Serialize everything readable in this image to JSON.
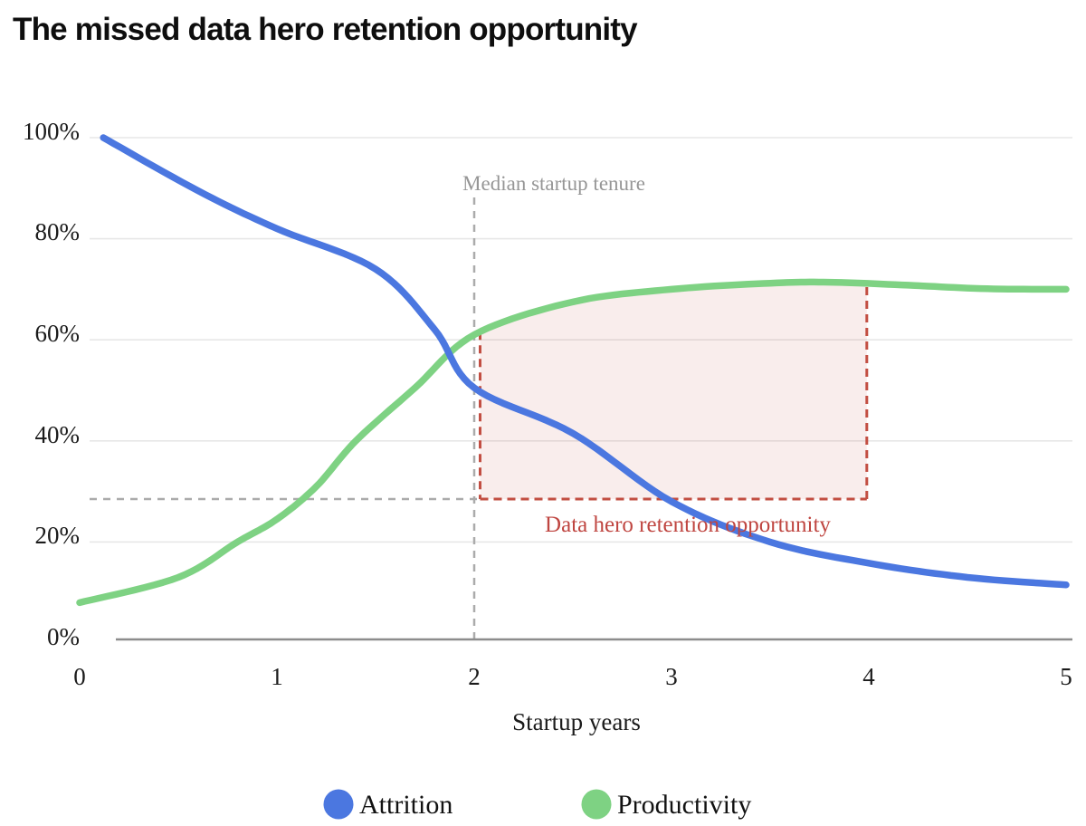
{
  "title": "The missed data hero retention opportunity",
  "chart_data": {
    "type": "line",
    "title": "The missed data hero retention opportunity",
    "xlabel": "Startup years",
    "ylabel": "",
    "xlim": [
      0,
      5
    ],
    "ylim": [
      0,
      100
    ],
    "x_ticks": [
      "0",
      "1",
      "2",
      "3",
      "4",
      "5"
    ],
    "y_ticks": [
      "100%",
      "80%",
      "60%",
      "40%",
      "20%",
      "0%"
    ],
    "y_tick_values": [
      100,
      80,
      60,
      40,
      20,
      0
    ],
    "grid": "horizontal-only",
    "legend_position": "bottom-center",
    "series": [
      {
        "name": "Attrition",
        "color": "#4b77e0",
        "points": [
          [
            0.12,
            100
          ],
          [
            0.6,
            89.5
          ],
          [
            1,
            82
          ],
          [
            1.5,
            74
          ],
          [
            1.8,
            62
          ],
          [
            2,
            50.5
          ],
          [
            2.5,
            41.5
          ],
          [
            3,
            28
          ],
          [
            3.5,
            20
          ],
          [
            4,
            15.8
          ],
          [
            4.5,
            13
          ],
          [
            5,
            11.5
          ]
        ]
      },
      {
        "name": "Productivity",
        "color": "#7ed283",
        "points": [
          [
            0,
            8
          ],
          [
            0.5,
            13
          ],
          [
            0.8,
            20
          ],
          [
            1,
            24.5
          ],
          [
            1.2,
            31
          ],
          [
            1.4,
            40
          ],
          [
            1.7,
            50.5
          ],
          [
            2,
            61
          ],
          [
            2.5,
            67.5
          ],
          [
            3,
            70
          ],
          [
            3.5,
            71.2
          ],
          [
            3.8,
            71.4
          ],
          [
            4.2,
            70.8
          ],
          [
            4.6,
            70.1
          ],
          [
            5,
            70
          ]
        ]
      }
    ],
    "annotations": {
      "median_tenure": {
        "label": "Median startup tenure",
        "x": 2,
        "line_color": "#ababab",
        "label_color": "#969696"
      },
      "opportunity": {
        "label": "Data hero retention opportunity",
        "x1": 2.03,
        "x2": 3.99,
        "y_bottom": 28.5,
        "border_color": "#c24e42",
        "fill_color": "rgba(194,78,66,0.10)",
        "label_color": "#bf4540",
        "baseline_color": "#ababab"
      }
    }
  }
}
